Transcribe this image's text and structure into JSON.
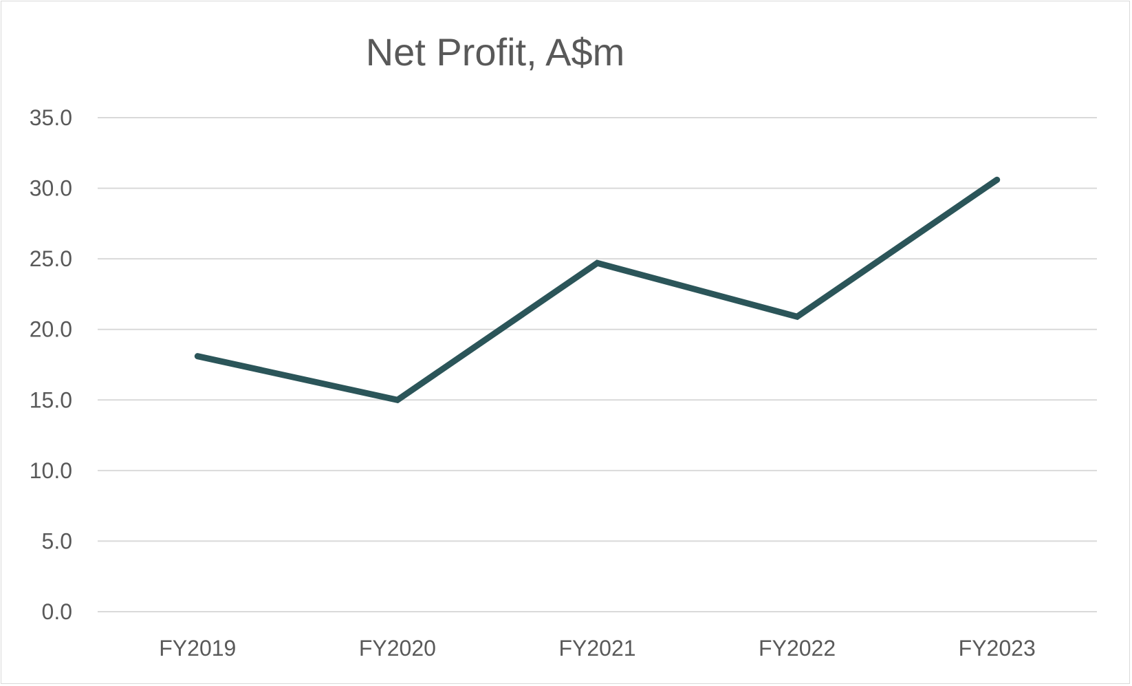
{
  "chart_data": {
    "type": "line",
    "title": "Net Profit, A$m",
    "xlabel": "",
    "ylabel": "",
    "categories": [
      "FY2019",
      "FY2020",
      "FY2021",
      "FY2022",
      "FY2023"
    ],
    "series": [
      {
        "values": [
          18.1,
          15.0,
          24.7,
          20.9,
          30.6
        ],
        "color": "#2B5559"
      }
    ],
    "ylim": [
      0,
      35
    ],
    "yticks": [
      "0.0",
      "5.0",
      "10.0",
      "15.0",
      "20.0",
      "25.0",
      "30.0",
      "35.0"
    ],
    "grid": true,
    "legend": "none"
  }
}
